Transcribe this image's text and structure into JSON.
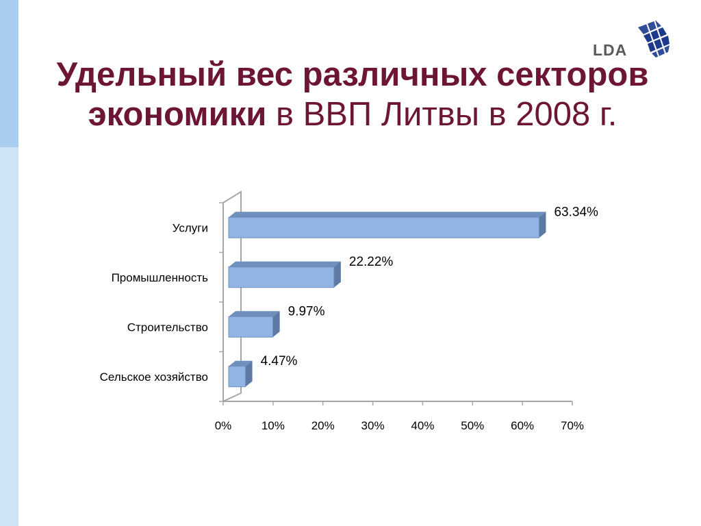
{
  "title": {
    "line1": "Удельный вес различных секторов",
    "line2_bold": "экономики",
    "line2_normal": " в ВВП Литвы в 2008 г."
  },
  "logo": {
    "text": "LDA",
    "icon": "globe-grid-icon"
  },
  "colors": {
    "title": "#6d1535",
    "bar_front": "#92b4e4",
    "bar_top": "#6f8fbc",
    "bar_side": "#5d7aa6",
    "axis": "#a6a6a6"
  },
  "chart_data": {
    "type": "bar",
    "orientation": "horizontal",
    "style": "3d",
    "categories": [
      "Услуги",
      "Промышленность",
      "Строительство",
      "Сельское хозяйство"
    ],
    "values": [
      63.34,
      22.22,
      9.97,
      4.47
    ],
    "data_labels": [
      "63.34%",
      "22.22%",
      "9.97%",
      "4.47%"
    ],
    "x_ticks": [
      "0%",
      "10%",
      "20%",
      "30%",
      "40%",
      "50%",
      "60%",
      "70%"
    ],
    "xlim": [
      0,
      70
    ],
    "title": "",
    "xlabel": "",
    "ylabel": "",
    "grid": false,
    "legend": "none"
  }
}
